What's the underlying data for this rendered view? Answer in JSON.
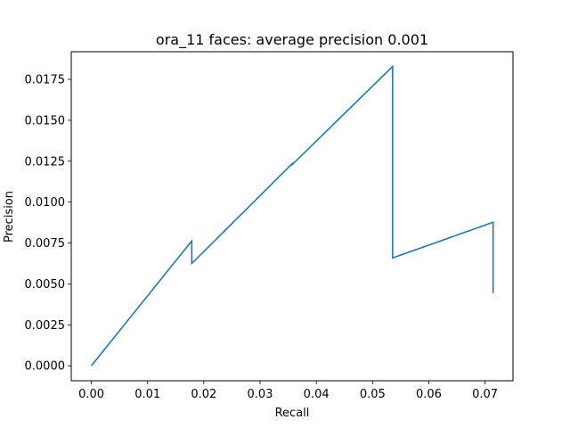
{
  "chart_data": {
    "type": "line",
    "title": "ora_11 faces: average precision 0.001",
    "xlabel": "Recall",
    "ylabel": "Precision",
    "xlim": [
      -0.00357,
      0.07497
    ],
    "ylim": [
      -0.000914,
      0.01919
    ],
    "x_ticks": [
      0.0,
      0.01,
      0.02,
      0.03,
      0.04,
      0.05,
      0.06,
      0.07
    ],
    "x_tick_labels": [
      "0.00",
      "0.01",
      "0.02",
      "0.03",
      "0.04",
      "0.05",
      "0.06",
      "0.07"
    ],
    "y_ticks": [
      0.0,
      0.0025,
      0.005,
      0.0075,
      0.01,
      0.0125,
      0.015,
      0.0175
    ],
    "y_tick_labels": [
      "0.0000",
      "0.0025",
      "0.0050",
      "0.0075",
      "0.0100",
      "0.0125",
      "0.0150",
      "0.0175"
    ],
    "grid": false,
    "line_color": "#1f77b4",
    "series": [
      {
        "x": [
          0.0,
          0.01786,
          0.01786,
          0.03571,
          0.03571,
          0.05357,
          0.05357,
          0.07143,
          0.07143
        ],
        "y": [
          0.0,
          0.00763,
          0.00625,
          0.01235,
          0.01229,
          0.01829,
          0.00659,
          0.00877,
          0.00444
        ]
      }
    ]
  }
}
